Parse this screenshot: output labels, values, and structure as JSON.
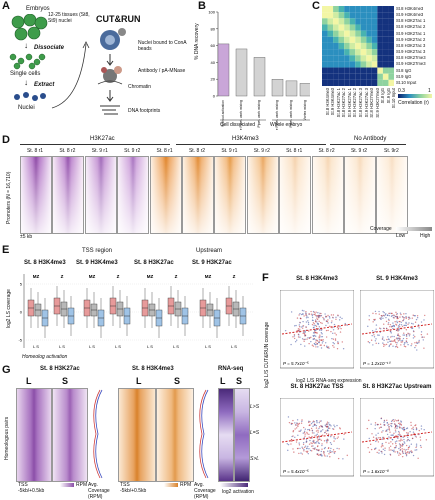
{
  "panels": {
    "A": "A",
    "B": "B",
    "C": "C",
    "D": "D",
    "E": "E",
    "F": "F",
    "G": "G"
  },
  "panelA": {
    "embryos": "Embryos",
    "stage_note": "12-25 tissues (St8, St9) nuclei",
    "dissociate": "Dissociate",
    "single_cells": "Single cells",
    "extract": "Extract",
    "nuclei": "Nuclei",
    "cutrun": "CUT&RUN",
    "bound": "Nuclei bound to ConA beads",
    "antibody": "Antibody / pA-MNase",
    "chromatin": "Chromatin",
    "dna": "DNA footprints"
  },
  "panelB": {
    "ylabel": "% DNA recovery",
    "yticks": [
      "0",
      "20",
      "40",
      "60",
      "80",
      "100"
    ],
    "bars": [
      {
        "label": "Without activation",
        "value": 62,
        "color": "#c9a6d8"
      },
      {
        "label": "Gentle Pipet. work mixing",
        "value": 56,
        "color": "#d3d3d3"
      },
      {
        "label": "Pipet. work mixing",
        "value": 46,
        "color": "#d3d3d3"
      },
      {
        "label": "Gentle Pipet. work mixing",
        "value": 20,
        "color": "#d3d3d3"
      },
      {
        "label": "Pipet. work mixing",
        "value": 18,
        "color": "#d3d3d3"
      },
      {
        "label": "Vortex mixing",
        "value": 15,
        "color": "#d3d3d3"
      }
    ],
    "group1": "Cell dissociated",
    "group2": "Whole embryo"
  },
  "panelC": {
    "rows": [
      "St.8 H3K4me3",
      "St.9 H3K4me3",
      "St.8 H3K27ac 1",
      "St.8 H3K27ac 2",
      "St.9 H3K27ac 1",
      "St.9 H3K27ac 2",
      "St.8 H3K27ac 3",
      "St.9 H3K27ac 3",
      "St.8 H3K27me3",
      "St.9 H3K27me3",
      "St.8 IgG",
      "St.9 IgG",
      "St.10 Input"
    ],
    "legend": "Correlation (r)",
    "legend_ticks": [
      "0.3",
      "1"
    ]
  },
  "panelD": {
    "group1": "H3K27ac",
    "group2": "H3K4me3",
    "group3": "No Antibody",
    "columns": [
      "St. 8 r1",
      "St. 8 r2",
      "St. 9 r1",
      "St. 9 r2",
      "St. 8 r1",
      "St. 8 r2",
      "St. 9 r1",
      "St. 9 r2",
      "St. 8 r1",
      "St. 8 r2",
      "St. 9 r2",
      "St. 9r2"
    ],
    "ylabel": "Promoters (N = 16,710)",
    "xlabel": "±5 kb",
    "legend": "Coverage",
    "legend_low": "Low",
    "legend_high": "High"
  },
  "panelE": {
    "title_tss": "TSS region",
    "title_up": "Upstream",
    "sub": [
      "St. 8 H3K4me3",
      "St. 9 H3K4me3",
      "St. 8 H3K27ac",
      "St. 9 H3K27ac"
    ],
    "ylabel": "log2 LS coverage",
    "mz": "MZ",
    "z": "Z",
    "xlabel": "Homeolog activation",
    "ls": "L S"
  },
  "panelF": {
    "titles": [
      "St. 8 H3K4me3",
      "St. 9 H3K4me3",
      "St. 8 H3K27ac TSS",
      "St. 8 H3K27ac Upstream"
    ],
    "pvals": [
      "P = 5.7x10⁻⁵",
      "P = 1.2x10⁻¹⁰",
      "P = 5.4x10⁻⁵",
      "P = 1.6x10⁻⁸"
    ],
    "ylabel": "log2 L/S CUT&RUN coverage",
    "xlabel": "log2 L/S RNA-seq expression",
    "ticks": [
      "-15",
      "-10",
      "-5",
      "0",
      "5",
      "10",
      "15"
    ]
  },
  "panelG": {
    "t1": "St. 8 H3K27ac",
    "t2": "St. 8 H3K4me3",
    "t3": "RNA-seq",
    "L": "L",
    "S": "S",
    "ylabel": "Homeologous pairs",
    "tss": "TSS",
    "range": "-5kb/+0.5kb",
    "rpm": "RPM",
    "avg": "Avg. Coverage (RPM)",
    "log2": "log2 activation",
    "lgs": "L>S",
    "leqs": "L=S",
    "slt": "S>L"
  }
}
